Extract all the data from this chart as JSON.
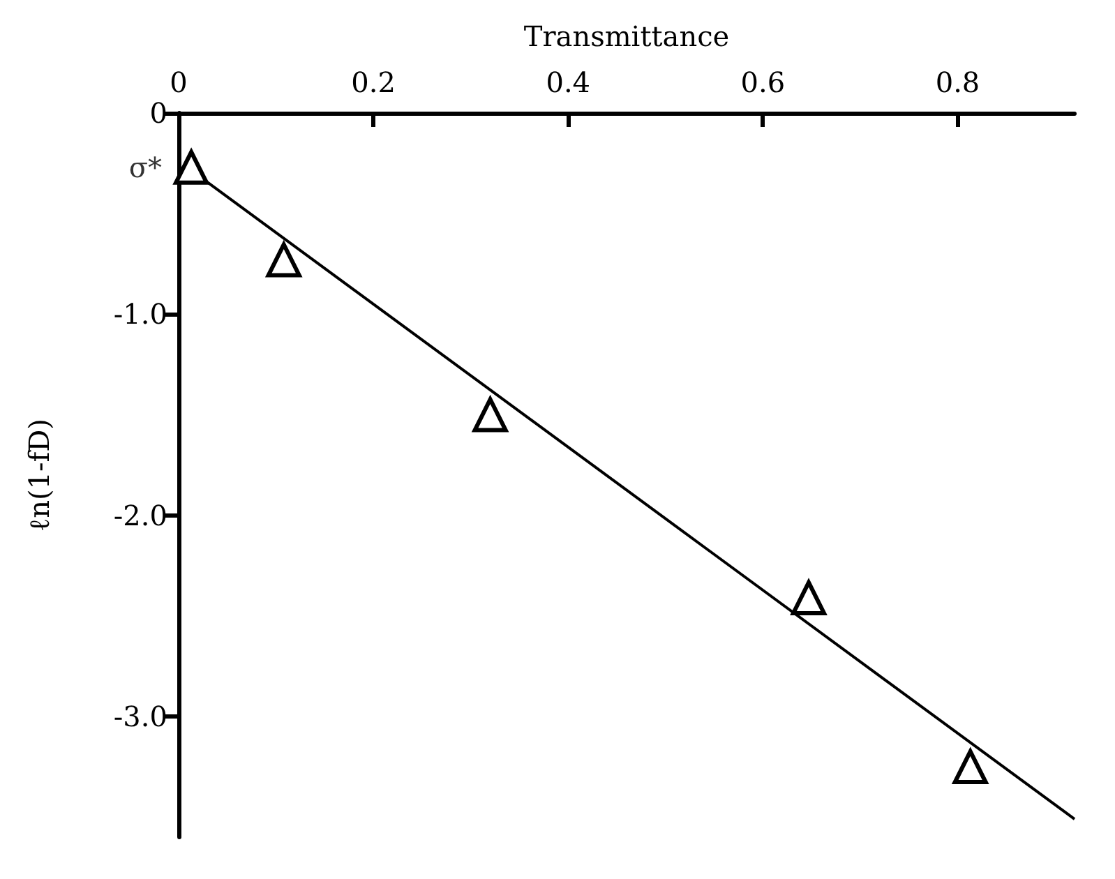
{
  "chart_data": {
    "type": "scatter",
    "xlabel": "Transmittance",
    "ylabel": "ℓn(1-fD)",
    "xlim": [
      0,
      0.92
    ],
    "xticks": [
      0,
      0.2,
      0.4,
      0.6,
      0.8
    ],
    "ylim": [
      -3.6,
      0
    ],
    "yticks": [
      0,
      {
        "value": -1,
        "label": "-1.0"
      },
      {
        "value": -2,
        "label": "-2.0"
      },
      {
        "value": -3,
        "label": "-3.0"
      }
    ],
    "grid": false,
    "marker": "triangle",
    "annotations": [
      {
        "text": "σ*",
        "x": 0,
        "y": -0.27
      }
    ],
    "series": [
      {
        "color": "#000000",
        "x": [
          0.013,
          0.108,
          0.32,
          0.647,
          0.813
        ],
        "values": [
          -0.27,
          -0.73,
          -1.5,
          -2.41,
          -3.25
        ]
      },
      {
        "type": "line",
        "color": "#000000",
        "marker": "none",
        "line_style": "solid",
        "x": [
          0.02,
          0.92
        ],
        "values": [
          -0.31,
          -3.51
        ]
      }
    ]
  }
}
